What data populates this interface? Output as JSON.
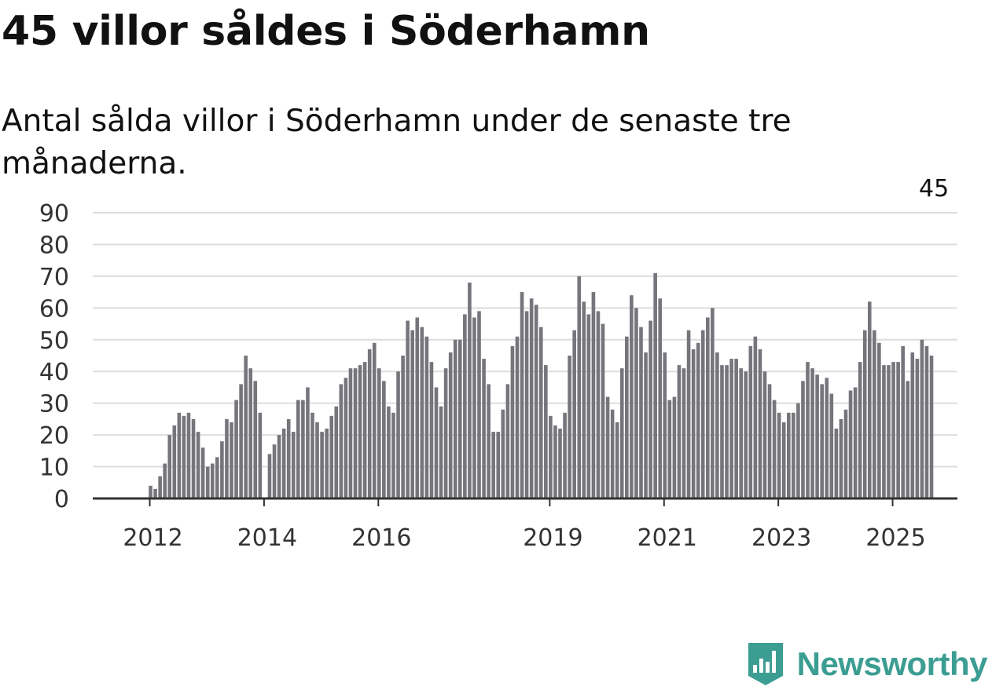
{
  "title": "45 villor såldes i Söderhamn",
  "subtitle": "Antal sålda villor i Söderhamn under de senaste tre månaderna.",
  "brand": {
    "name": "Newsworthy",
    "color": "#3c9d92"
  },
  "chart_data": {
    "type": "bar",
    "title": "45 villor såldes i Söderhamn",
    "xlabel": "",
    "ylabel": "",
    "ylim": [
      0,
      90
    ],
    "yticks": [
      0,
      10,
      20,
      30,
      40,
      50,
      60,
      70,
      80,
      90
    ],
    "grid": true,
    "start": "2011-04",
    "x_ticks": [
      {
        "label": "2012",
        "index": 9
      },
      {
        "label": "2014",
        "index": 33
      },
      {
        "label": "2016",
        "index": 57
      },
      {
        "label": "2019",
        "index": 93
      },
      {
        "label": "2021",
        "index": 117
      },
      {
        "label": "2023",
        "index": 141
      },
      {
        "label": "2025",
        "index": 165
      }
    ],
    "bar_color": "#76757c",
    "highlight_color": "#1b9e94",
    "highlight_index": 174,
    "annotation": {
      "index": 174,
      "label": "45"
    },
    "values": [
      0,
      0,
      0,
      0,
      0,
      0,
      0,
      0,
      0,
      4,
      3,
      7,
      11,
      20,
      23,
      27,
      26,
      27,
      25,
      21,
      16,
      10,
      11,
      13,
      18,
      25,
      24,
      31,
      36,
      45,
      41,
      37,
      27,
      0,
      14,
      17,
      20,
      22,
      25,
      21,
      31,
      31,
      35,
      27,
      24,
      21,
      22,
      26,
      29,
      36,
      38,
      41,
      41,
      42,
      43,
      47,
      49,
      41,
      37,
      29,
      27,
      40,
      45,
      56,
      53,
      57,
      54,
      51,
      43,
      35,
      29,
      41,
      46,
      50,
      50,
      58,
      68,
      57,
      59,
      44,
      36,
      21,
      21,
      28,
      36,
      48,
      51,
      65,
      59,
      63,
      61,
      54,
      42,
      26,
      23,
      22,
      27,
      45,
      53,
      70,
      62,
      58,
      65,
      59,
      55,
      32,
      28,
      24,
      41,
      51,
      64,
      60,
      54,
      46,
      56,
      71,
      63,
      46,
      31,
      32,
      42,
      41,
      53,
      47,
      49,
      53,
      57,
      60,
      46,
      42,
      42,
      44,
      44,
      41,
      40,
      48,
      51,
      47,
      40,
      36,
      31,
      27,
      24,
      27,
      27,
      30,
      37,
      43,
      41,
      39,
      36,
      38,
      33,
      22,
      25,
      28,
      34,
      35,
      43,
      53,
      62,
      53,
      49,
      42,
      42,
      43,
      43,
      48,
      37,
      46,
      44,
      50,
      48,
      45
    ]
  }
}
